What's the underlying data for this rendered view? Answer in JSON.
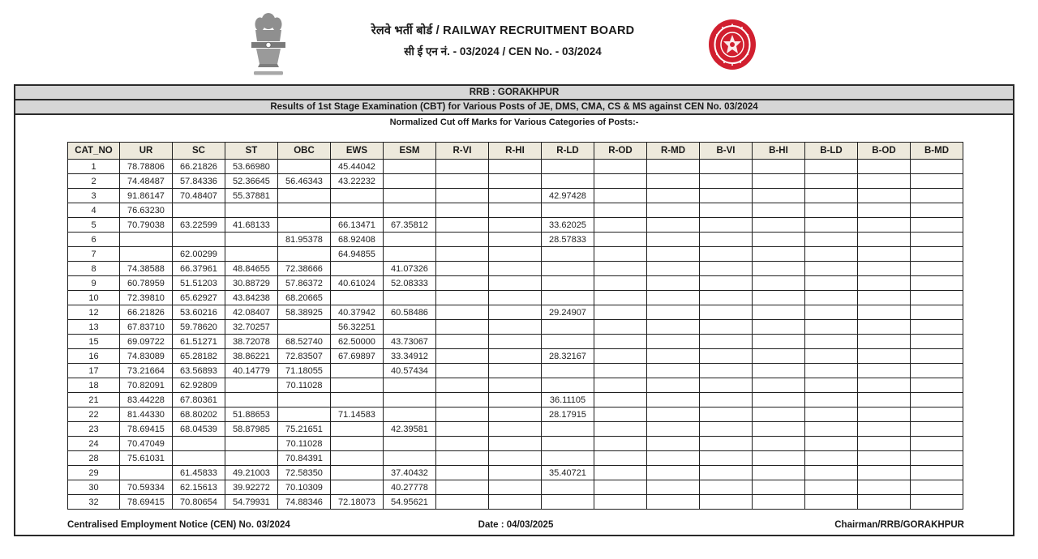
{
  "header": {
    "org_line1": "रेलवे भर्ती बोर्ड / RAILWAY RECRUITMENT BOARD",
    "org_line2": "सी ई एन नं. - 03/2024 / CEN No. - 03/2024",
    "logo_red": "#d11f2f",
    "emblem_gray": "#8f8f8f"
  },
  "banners": {
    "board": "RRB : GORAKHPUR",
    "results_title": "Results of 1st Stage Examination (CBT) for Various Posts of JE, DMS, CMA, CS & MS against CEN No. 03/2024",
    "subtitle": "Normalized Cut off Marks for Various Categories of Posts:-"
  },
  "table": {
    "header_bg": "#ede9dc",
    "columns": [
      "CAT_NO",
      "UR",
      "SC",
      "ST",
      "OBC",
      "EWS",
      "ESM",
      "R-VI",
      "R-HI",
      "R-LD",
      "R-OD",
      "R-MD",
      "B-VI",
      "B-HI",
      "B-LD",
      "B-OD",
      "B-MD"
    ],
    "rows": [
      [
        "1",
        "78.78806",
        "66.21826",
        "53.66980",
        "",
        "45.44042",
        "",
        "",
        "",
        "",
        "",
        "",
        "",
        "",
        "",
        "",
        ""
      ],
      [
        "2",
        "74.48487",
        "57.84336",
        "52.36645",
        "56.46343",
        "43.22232",
        "",
        "",
        "",
        "",
        "",
        "",
        "",
        "",
        "",
        "",
        ""
      ],
      [
        "3",
        "91.86147",
        "70.48407",
        "55.37881",
        "",
        "",
        "",
        "",
        "",
        "42.97428",
        "",
        "",
        "",
        "",
        "",
        "",
        ""
      ],
      [
        "4",
        "76.63230",
        "",
        "",
        "",
        "",
        "",
        "",
        "",
        "",
        "",
        "",
        "",
        "",
        "",
        "",
        ""
      ],
      [
        "5",
        "70.79038",
        "63.22599",
        "41.68133",
        "",
        "66.13471",
        "67.35812",
        "",
        "",
        "33.62025",
        "",
        "",
        "",
        "",
        "",
        "",
        ""
      ],
      [
        "6",
        "",
        "",
        "",
        "81.95378",
        "68.92408",
        "",
        "",
        "",
        "28.57833",
        "",
        "",
        "",
        "",
        "",
        "",
        ""
      ],
      [
        "7",
        "",
        "62.00299",
        "",
        "",
        "64.94855",
        "",
        "",
        "",
        "",
        "",
        "",
        "",
        "",
        "",
        "",
        ""
      ],
      [
        "8",
        "74.38588",
        "66.37961",
        "48.84655",
        "72.38666",
        "",
        "41.07326",
        "",
        "",
        "",
        "",
        "",
        "",
        "",
        "",
        "",
        ""
      ],
      [
        "9",
        "60.78959",
        "51.51203",
        "30.88729",
        "57.86372",
        "40.61024",
        "52.08333",
        "",
        "",
        "",
        "",
        "",
        "",
        "",
        "",
        "",
        ""
      ],
      [
        "10",
        "72.39810",
        "65.62927",
        "43.84238",
        "68.20665",
        "",
        "",
        "",
        "",
        "",
        "",
        "",
        "",
        "",
        "",
        "",
        ""
      ],
      [
        "12",
        "66.21826",
        "53.60216",
        "42.08407",
        "58.38925",
        "40.37942",
        "60.58486",
        "",
        "",
        "29.24907",
        "",
        "",
        "",
        "",
        "",
        "",
        ""
      ],
      [
        "13",
        "67.83710",
        "59.78620",
        "32.70257",
        "",
        "56.32251",
        "",
        "",
        "",
        "",
        "",
        "",
        "",
        "",
        "",
        "",
        ""
      ],
      [
        "15",
        "69.09722",
        "61.51271",
        "38.72078",
        "68.52740",
        "62.50000",
        "43.73067",
        "",
        "",
        "",
        "",
        "",
        "",
        "",
        "",
        "",
        ""
      ],
      [
        "16",
        "74.83089",
        "65.28182",
        "38.86221",
        "72.83507",
        "67.69897",
        "33.34912",
        "",
        "",
        "28.32167",
        "",
        "",
        "",
        "",
        "",
        "",
        ""
      ],
      [
        "17",
        "73.21664",
        "63.56893",
        "40.14779",
        "71.18055",
        "",
        "40.57434",
        "",
        "",
        "",
        "",
        "",
        "",
        "",
        "",
        "",
        ""
      ],
      [
        "18",
        "70.82091",
        "62.92809",
        "",
        "70.11028",
        "",
        "",
        "",
        "",
        "",
        "",
        "",
        "",
        "",
        "",
        "",
        ""
      ],
      [
        "21",
        "83.44228",
        "67.80361",
        "",
        "",
        "",
        "",
        "",
        "",
        "36.11105",
        "",
        "",
        "",
        "",
        "",
        "",
        ""
      ],
      [
        "22",
        "81.44330",
        "68.80202",
        "51.88653",
        "",
        "71.14583",
        "",
        "",
        "",
        "28.17915",
        "",
        "",
        "",
        "",
        "",
        "",
        ""
      ],
      [
        "23",
        "78.69415",
        "68.04539",
        "58.87985",
        "75.21651",
        "",
        "42.39581",
        "",
        "",
        "",
        "",
        "",
        "",
        "",
        "",
        "",
        ""
      ],
      [
        "24",
        "70.47049",
        "",
        "",
        "70.11028",
        "",
        "",
        "",
        "",
        "",
        "",
        "",
        "",
        "",
        "",
        "",
        ""
      ],
      [
        "28",
        "75.61031",
        "",
        "",
        "70.84391",
        "",
        "",
        "",
        "",
        "",
        "",
        "",
        "",
        "",
        "",
        "",
        ""
      ],
      [
        "29",
        "",
        "61.45833",
        "49.21003",
        "72.58350",
        "",
        "37.40432",
        "",
        "",
        "35.40721",
        "",
        "",
        "",
        "",
        "",
        "",
        ""
      ],
      [
        "30",
        "70.59334",
        "62.15613",
        "39.92272",
        "70.10309",
        "",
        "40.27778",
        "",
        "",
        "",
        "",
        "",
        "",
        "",
        "",
        "",
        ""
      ],
      [
        "32",
        "78.69415",
        "70.80654",
        "54.79931",
        "74.88346",
        "72.18073",
        "54.95621",
        "",
        "",
        "",
        "",
        "",
        "",
        "",
        "",
        "",
        ""
      ]
    ]
  },
  "footer": {
    "left": "Centralised Employment Notice (CEN) No. 03/2024",
    "center": "Date : 04/03/2025",
    "right": "Chairman/RRB/GORAKHPUR"
  }
}
